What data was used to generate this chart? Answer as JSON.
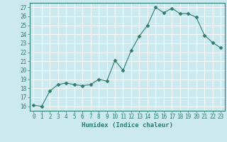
{
  "x": [
    0,
    1,
    2,
    3,
    4,
    5,
    6,
    7,
    8,
    9,
    10,
    11,
    12,
    13,
    14,
    15,
    16,
    17,
    18,
    19,
    20,
    21,
    22,
    23
  ],
  "y": [
    16.1,
    16.0,
    17.7,
    18.4,
    18.6,
    18.4,
    18.3,
    18.4,
    19.0,
    18.8,
    21.1,
    20.0,
    22.2,
    23.8,
    25.0,
    27.0,
    26.4,
    26.9,
    26.3,
    26.3,
    25.9,
    23.9,
    23.1,
    22.5
  ],
  "line_color": "#2e7d6e",
  "marker": "D",
  "marker_size": 2.5,
  "bg_color": "#cce9f0",
  "grid_color": "#ffffff",
  "xlabel": "Humidex (Indice chaleur)",
  "ylim": [
    15.5,
    27.5
  ],
  "xlim": [
    -0.5,
    23.5
  ],
  "yticks": [
    16,
    17,
    18,
    19,
    20,
    21,
    22,
    23,
    24,
    25,
    26,
    27
  ],
  "xticks": [
    0,
    1,
    2,
    3,
    4,
    5,
    6,
    7,
    8,
    9,
    10,
    11,
    12,
    13,
    14,
    15,
    16,
    17,
    18,
    19,
    20,
    21,
    22,
    23
  ],
  "tick_color": "#2e7d6e",
  "label_fontsize": 6.5,
  "tick_fontsize": 5.5
}
